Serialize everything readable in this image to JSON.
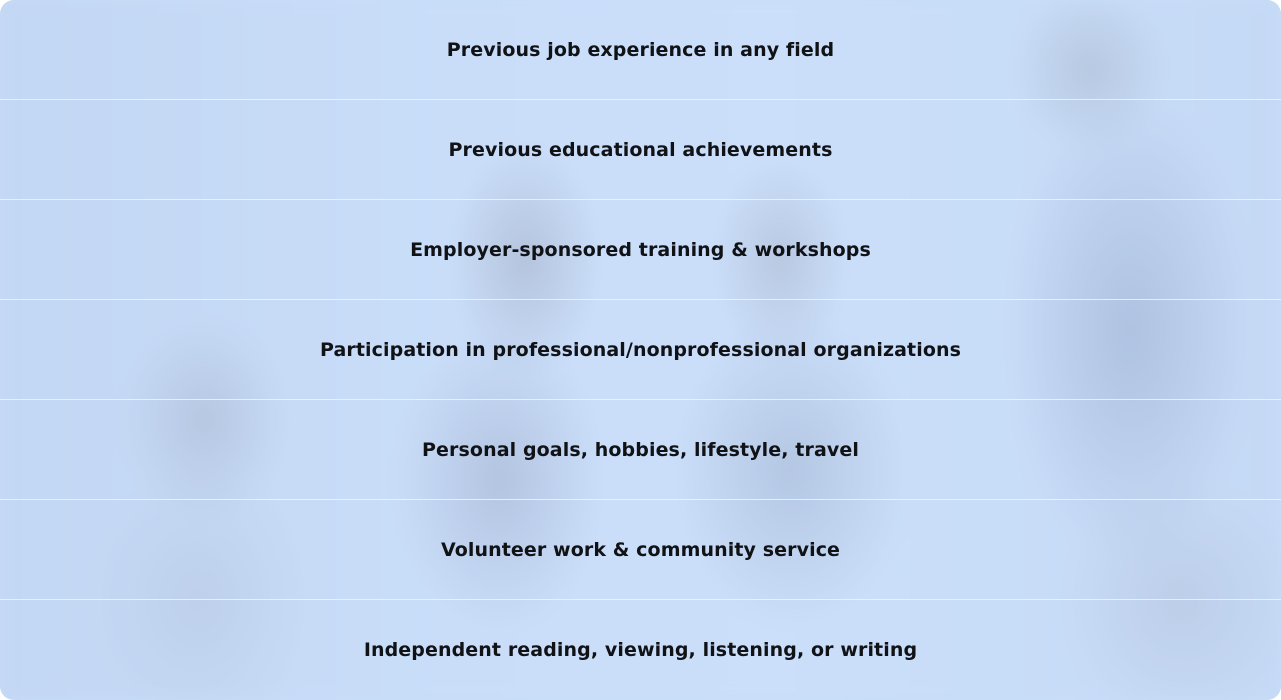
{
  "items": [
    {
      "label": "Previous job experience in any field"
    },
    {
      "label": "Previous educational achievements"
    },
    {
      "label": "Employer-sponsored training & workshops"
    },
    {
      "label": "Participation in professional/nonprofessional organizations"
    },
    {
      "label": "Personal goals, hobbies, lifestyle, travel"
    },
    {
      "label": "Volunteer work & community service"
    },
    {
      "label": "Independent reading, viewing, listening, or writing"
    }
  ]
}
